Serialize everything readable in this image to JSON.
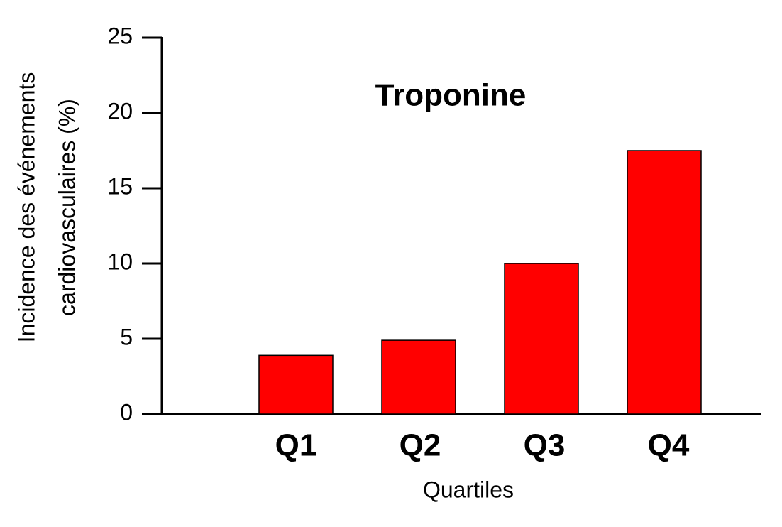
{
  "chart_data": {
    "type": "bar",
    "title": "Troponine",
    "xlabel": "Quartiles",
    "ylabel": [
      "Incidence des événements",
      "cardiovasculaires (%)"
    ],
    "categories": [
      "Q1",
      "Q2",
      "Q3",
      "Q4"
    ],
    "values": [
      3.9,
      4.9,
      10,
      17.5
    ],
    "color": "#ff0000",
    "ylim": [
      0,
      25
    ],
    "yticks": [
      0,
      5,
      10,
      15,
      20,
      25
    ],
    "grid": false
  }
}
